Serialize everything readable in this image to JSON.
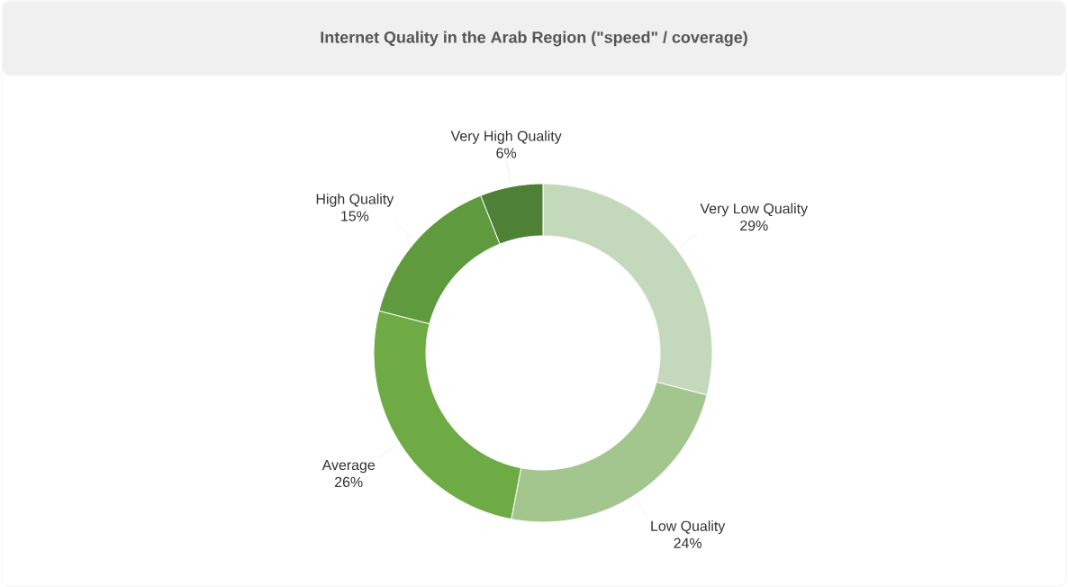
{
  "chart_data": {
    "type": "donut",
    "title": "Internet Quality in the Arab Region (\"speed\" / coverage)",
    "categories": [
      "Very Low Quality",
      "Low Quality",
      "Average",
      "High Quality",
      "Very High Quality"
    ],
    "values": [
      29,
      24,
      26,
      15,
      6
    ],
    "colors": [
      "#c4d9bb",
      "#a3c68f",
      "#6fab45",
      "#609a3f",
      "#4e8035"
    ],
    "value_labels": [
      "29%",
      "24%",
      "26%",
      "15%",
      "6%"
    ]
  }
}
